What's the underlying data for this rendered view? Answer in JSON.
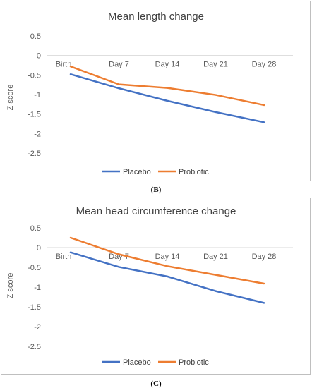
{
  "colors": {
    "placebo": "#4472C4",
    "probiotic": "#ED7D31"
  },
  "captions": [
    "(B)",
    "(C)"
  ],
  "chart_data": [
    {
      "type": "line",
      "title": "Mean length change",
      "xlabel": "",
      "ylabel": "Z score",
      "categories": [
        "Birth",
        "Day 7",
        "Day 14",
        "Day 21",
        "Day 28"
      ],
      "ylim": [
        -3,
        0.5
      ],
      "yticks": [
        0.5,
        0,
        -0.5,
        -1,
        -1.5,
        -2,
        -2.5
      ],
      "grid": false,
      "legend_position": "bottom",
      "series": [
        {
          "name": "Placebo",
          "values": [
            -0.48,
            -0.84,
            -1.16,
            -1.45,
            -1.71
          ]
        },
        {
          "name": "Probiotic",
          "values": [
            -0.28,
            -0.74,
            -0.83,
            -1.01,
            -1.27
          ]
        }
      ]
    },
    {
      "type": "line",
      "title": "Mean head circumference change",
      "xlabel": "",
      "ylabel": "Z score",
      "categories": [
        "Birth",
        "Day 7",
        "Day 14",
        "Day 21",
        "Day 28"
      ],
      "ylim": [
        -3,
        0.5
      ],
      "yticks": [
        0.5,
        0,
        -0.5,
        -1,
        -1.5,
        -2,
        -2.5
      ],
      "grid": false,
      "legend_position": "bottom",
      "series": [
        {
          "name": "Placebo",
          "values": [
            -0.12,
            -0.49,
            -0.73,
            -1.1,
            -1.4
          ]
        },
        {
          "name": "Probiotic",
          "values": [
            0.25,
            -0.17,
            -0.47,
            -0.69,
            -0.91
          ]
        }
      ]
    }
  ]
}
